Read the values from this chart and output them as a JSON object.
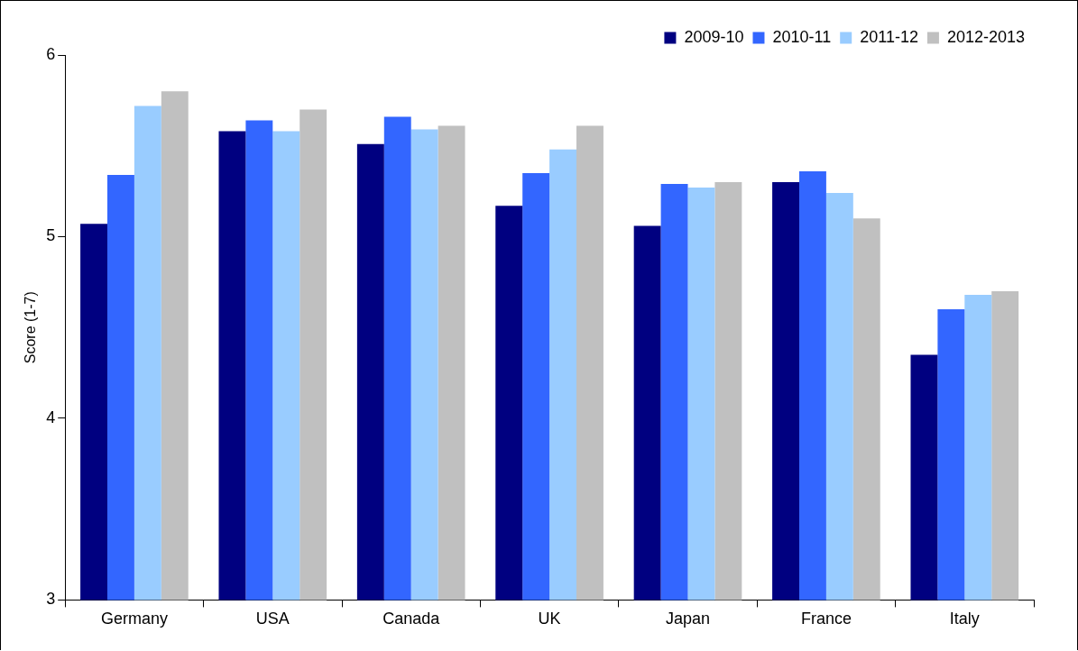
{
  "chart_data": {
    "type": "bar",
    "ylabel": "Score (1-7)",
    "categories": [
      "Germany",
      "USA",
      "Canada",
      "UK",
      "Japan",
      "France",
      "Italy"
    ],
    "series": [
      {
        "name": "2009-10",
        "color": "#000080",
        "values": [
          5.07,
          5.58,
          5.51,
          5.17,
          5.06,
          5.3,
          4.35
        ]
      },
      {
        "name": "2010-11",
        "color": "#3366ff",
        "values": [
          5.34,
          5.64,
          5.66,
          5.35,
          5.29,
          5.36,
          4.6
        ]
      },
      {
        "name": "2011-12",
        "color": "#99ccff",
        "values": [
          5.72,
          5.58,
          5.59,
          5.48,
          5.27,
          5.24,
          4.68
        ]
      },
      {
        "name": "2012-2013",
        "color": "#c0c0c0",
        "values": [
          5.8,
          5.7,
          5.61,
          5.61,
          5.3,
          5.1,
          4.7
        ]
      }
    ],
    "ylim": [
      3,
      6
    ],
    "yticks": [
      3,
      4,
      5,
      6
    ],
    "grid": false,
    "legend": "top right"
  }
}
